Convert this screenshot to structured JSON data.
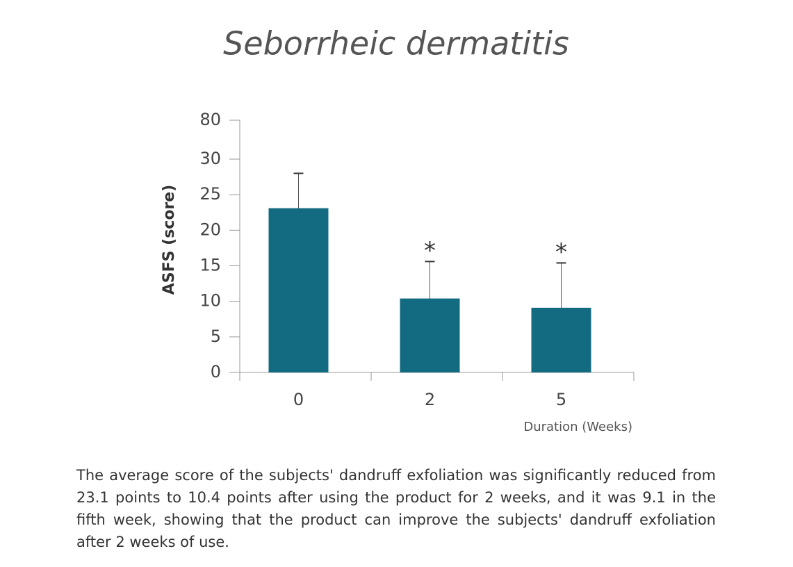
{
  "chart_data": {
    "type": "bar",
    "title": "Seborrheic dermatitis",
    "y_label": "ASFS (score)",
    "x_label": "Duration (Weeks)",
    "categories": [
      "0",
      "2",
      "5"
    ],
    "values": [
      23.1,
      10.4,
      9.1
    ],
    "errors": [
      4.9,
      5.2,
      6.3
    ],
    "annotations": [
      null,
      "*",
      "*"
    ],
    "color": "#136b82",
    "ylim": [
      0,
      80
    ],
    "yticks": [
      0,
      5,
      10,
      15,
      20,
      25,
      30,
      80
    ],
    "grid": false
  },
  "caption": "The average score of the subjects' dandruff exfoliation was significantly reduced from 23.1 points to 10.4 points after using the product for 2 weeks, and it was 9.1 in the fifth week, showing that the product can improve the subjects' dandruff exfoliation after 2 weeks of use."
}
